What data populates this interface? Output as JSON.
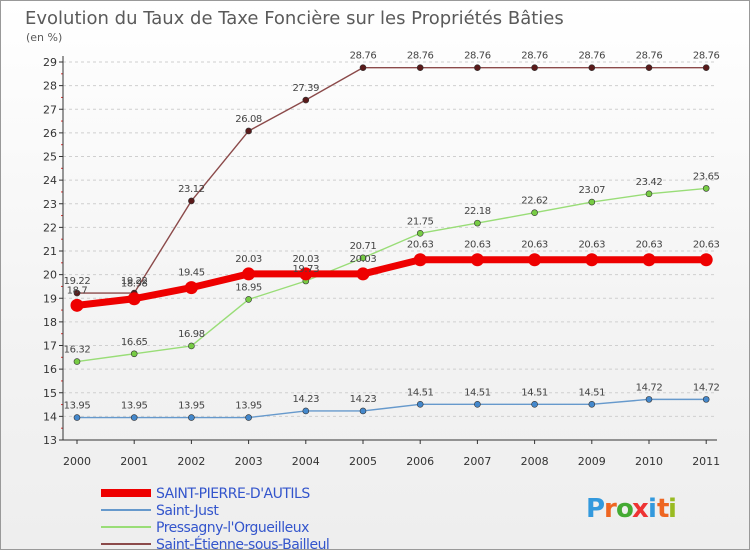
{
  "chart_data": {
    "type": "line",
    "title": "Evolution du Taux de Taxe Foncière sur les Propriétés Bâties",
    "ylabel": "(en %)",
    "xlabel": "",
    "x": [
      "2000",
      "2001",
      "2002",
      "2003",
      "2004",
      "2005",
      "2006",
      "2007",
      "2008",
      "2009",
      "2010",
      "2011"
    ],
    "ylim": [
      13,
      29
    ],
    "yticks": [
      "13",
      "14",
      "15",
      "16",
      "17",
      "18",
      "19",
      "20",
      "21",
      "22",
      "23",
      "24",
      "25",
      "26",
      "27",
      "28",
      "29"
    ],
    "grid": "horizontal-dashed",
    "legend_position": "bottom-left",
    "series": [
      {
        "name": "Saint-Étienne-sous-Bailleul",
        "color": "#8b4a4a",
        "marker_color": "#5a1a1a",
        "values": [
          19.22,
          19.22,
          23.12,
          26.08,
          27.39,
          28.76,
          28.76,
          28.76,
          28.76,
          28.76,
          28.76,
          28.76
        ],
        "labels": [
          "19.22",
          "19.22",
          "23.12",
          "26.08",
          "27.39",
          "28.76",
          "28.76",
          "28.76",
          "28.76",
          "28.76",
          "28.76",
          "28.76"
        ]
      },
      {
        "name": "Pressagny-l'Orgueilleux",
        "color": "#99dd77",
        "marker_color": "#77cc44",
        "values": [
          16.32,
          16.65,
          16.98,
          18.95,
          19.73,
          20.71,
          21.75,
          22.18,
          22.62,
          23.07,
          23.42,
          23.65
        ],
        "labels": [
          "16.32",
          "16.65",
          "16.98",
          "18.95",
          "19.73",
          "20.71",
          "21.75",
          "22.18",
          "22.62",
          "23.07",
          "23.42",
          "23.65"
        ]
      },
      {
        "name": "SAINT-PIERRE-D'AUTILS",
        "color": "#ee0000",
        "marker_color": "#ee0000",
        "values": [
          18.7,
          18.98,
          19.45,
          20.03,
          20.03,
          20.03,
          20.63,
          20.63,
          20.63,
          20.63,
          20.63,
          20.63
        ],
        "labels": [
          "18.7",
          "18.98",
          "19.45",
          "20.03",
          "20.03",
          "20.03",
          "20.63",
          "20.63",
          "20.63",
          "20.63",
          "20.63",
          "20.63"
        ]
      },
      {
        "name": "Saint-Just",
        "color": "#6699cc",
        "marker_color": "#4488cc",
        "values": [
          13.95,
          13.95,
          13.95,
          13.95,
          14.23,
          14.23,
          14.51,
          14.51,
          14.51,
          14.51,
          14.72,
          14.72
        ],
        "labels": [
          "13.95",
          "13.95",
          "13.95",
          "13.95",
          "14.23",
          "14.23",
          "14.51",
          "14.51",
          "14.51",
          "14.51",
          "14.72",
          "14.72"
        ]
      }
    ],
    "legend": [
      {
        "name": "SAINT-PIERRE-D'AUTILS",
        "color": "#ee0000"
      },
      {
        "name": "Saint-Just",
        "color": "#6699cc"
      },
      {
        "name": "Pressagny-l'Orgueilleux",
        "color": "#99dd77"
      },
      {
        "name": "Saint-Étienne-sous-Bailleul",
        "color": "#8b4a4a"
      }
    ],
    "legend_text_color": "#3355cc"
  },
  "logo": {
    "letters": [
      "P",
      "r",
      "o",
      "x",
      "i",
      "t",
      "i"
    ],
    "colors": [
      "#3399dd",
      "#ee6622",
      "#44aa33",
      "#ee3333",
      "#3399dd",
      "#ee6622",
      "#99bb22"
    ]
  }
}
